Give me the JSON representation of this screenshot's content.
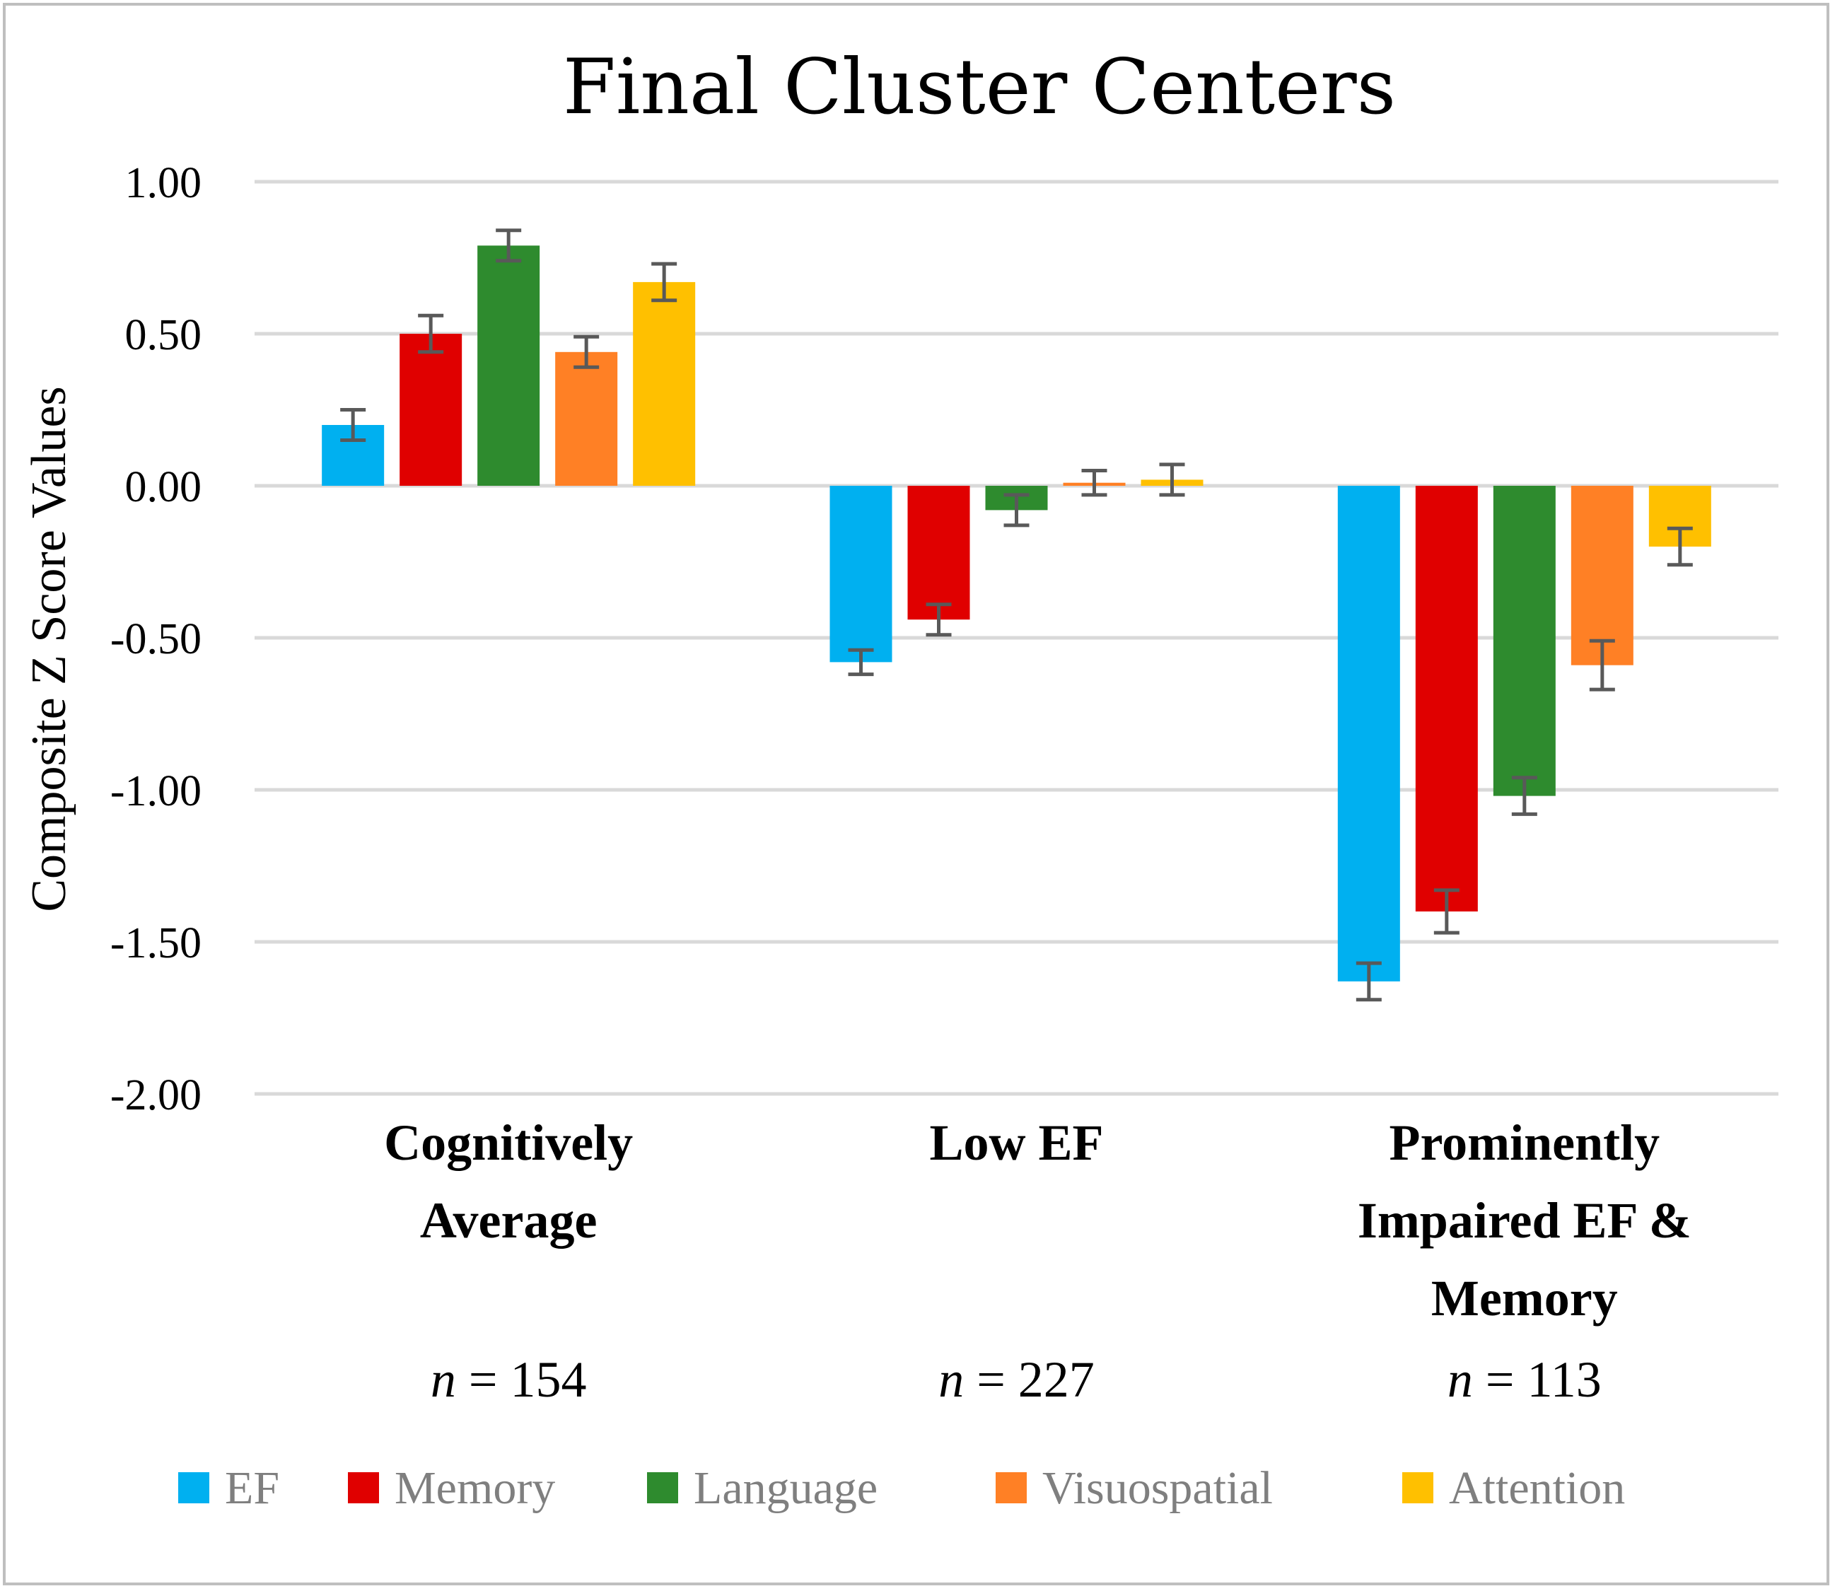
{
  "chart_data": {
    "type": "bar",
    "title": "Final Cluster Centers",
    "xlabel": "",
    "ylabel": "Composite Z Score Values",
    "ylim": [
      -2.0,
      1.0
    ],
    "yticks": [
      1.0,
      0.5,
      0.0,
      -0.5,
      -1.0,
      -1.5,
      -2.0
    ],
    "ytick_labels": [
      "1.00",
      "0.50",
      "0.00",
      "-0.50",
      "-1.00",
      "-1.50",
      "-2.00"
    ],
    "grid": true,
    "legend_position": "bottom",
    "categories": [
      {
        "label_lines": [
          "Cognitively",
          "Average"
        ],
        "n_prefix": "n",
        "n_text": " = 154"
      },
      {
        "label_lines": [
          "Low EF"
        ],
        "n_prefix": "n",
        "n_text": " = 227"
      },
      {
        "label_lines": [
          "Prominently",
          "Impaired EF &",
          "Memory"
        ],
        "n_prefix": "n",
        "n_text": " = 113"
      }
    ],
    "series": [
      {
        "name": "EF",
        "color": "#00b0f0",
        "values": [
          0.2,
          -0.58,
          -1.63
        ],
        "errors": [
          0.05,
          0.04,
          0.06
        ]
      },
      {
        "name": "Memory",
        "color": "#e00000",
        "values": [
          0.5,
          -0.44,
          -1.4
        ],
        "errors": [
          0.06,
          0.05,
          0.07
        ]
      },
      {
        "name": "Language",
        "color": "#2e8b2e",
        "values": [
          0.79,
          -0.08,
          -1.02
        ],
        "errors": [
          0.05,
          0.05,
          0.06
        ]
      },
      {
        "name": "Visuospatial",
        "color": "#ff8025",
        "values": [
          0.44,
          0.01,
          -0.59
        ],
        "errors": [
          0.05,
          0.04,
          0.08
        ]
      },
      {
        "name": "Attention",
        "color": "#ffc000",
        "values": [
          0.67,
          0.02,
          -0.2
        ],
        "errors": [
          0.06,
          0.05,
          0.06
        ]
      }
    ],
    "gridline_color": "#d9d9d9",
    "errorbar_color": "#595959"
  }
}
